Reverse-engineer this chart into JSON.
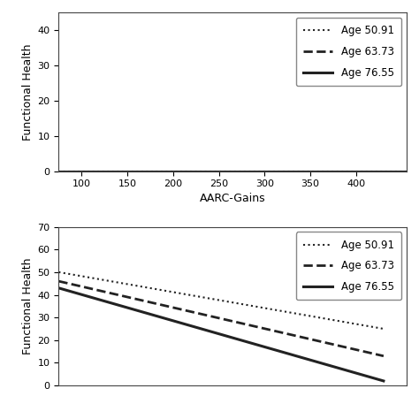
{
  "top_plot": {
    "xlabel": "AARC-Gains",
    "ylabel": "Functional Health",
    "xlim": [
      75,
      455
    ],
    "ylim": [
      0,
      45
    ],
    "xticks": [
      100,
      150,
      200,
      250,
      300,
      350,
      400
    ],
    "yticks": [
      0,
      10,
      20,
      30,
      40
    ],
    "lines": [
      {
        "label": "Age 50.91",
        "x": [
          75,
          455
        ],
        "y": [
          0.0,
          0.0
        ],
        "style": "dotted",
        "linewidth": 1.5,
        "color": "#222222"
      },
      {
        "label": "Age 63.73",
        "x": [
          75,
          455
        ],
        "y": [
          0.0,
          0.0
        ],
        "style": "dashed",
        "linewidth": 2.0,
        "color": "#222222"
      },
      {
        "label": "Age 76.55",
        "x": [
          75,
          455
        ],
        "y": [
          0.0,
          0.0
        ],
        "style": "solid",
        "linewidth": 2.2,
        "color": "#222222"
      }
    ]
  },
  "bottom_plot": {
    "xlabel": "",
    "ylabel": "Functional Health",
    "xlim": [
      75,
      455
    ],
    "ylim": [
      0,
      70
    ],
    "xticks": [],
    "yticks": [
      0,
      10,
      20,
      30,
      40,
      50,
      60,
      70
    ],
    "lines": [
      {
        "label": "Age 50.91",
        "x": [
          75,
          430
        ],
        "y": [
          50,
          25
        ],
        "style": "dotted",
        "linewidth": 1.5,
        "color": "#222222"
      },
      {
        "label": "Age 63.73",
        "x": [
          75,
          430
        ],
        "y": [
          46,
          13
        ],
        "style": "dashed",
        "linewidth": 2.0,
        "color": "#222222"
      },
      {
        "label": "Age 76.55",
        "x": [
          75,
          430
        ],
        "y": [
          43,
          2
        ],
        "style": "solid",
        "linewidth": 2.2,
        "color": "#222222"
      }
    ]
  },
  "legend": {
    "age_labels": [
      "Age 50.91",
      "Age 63.73",
      "Age 76.55"
    ],
    "styles": [
      "dotted",
      "dashed",
      "solid"
    ],
    "linewidths": [
      1.5,
      2.0,
      2.2
    ],
    "color": "#222222",
    "fontsize": 8.5
  },
  "background_color": "#ffffff"
}
